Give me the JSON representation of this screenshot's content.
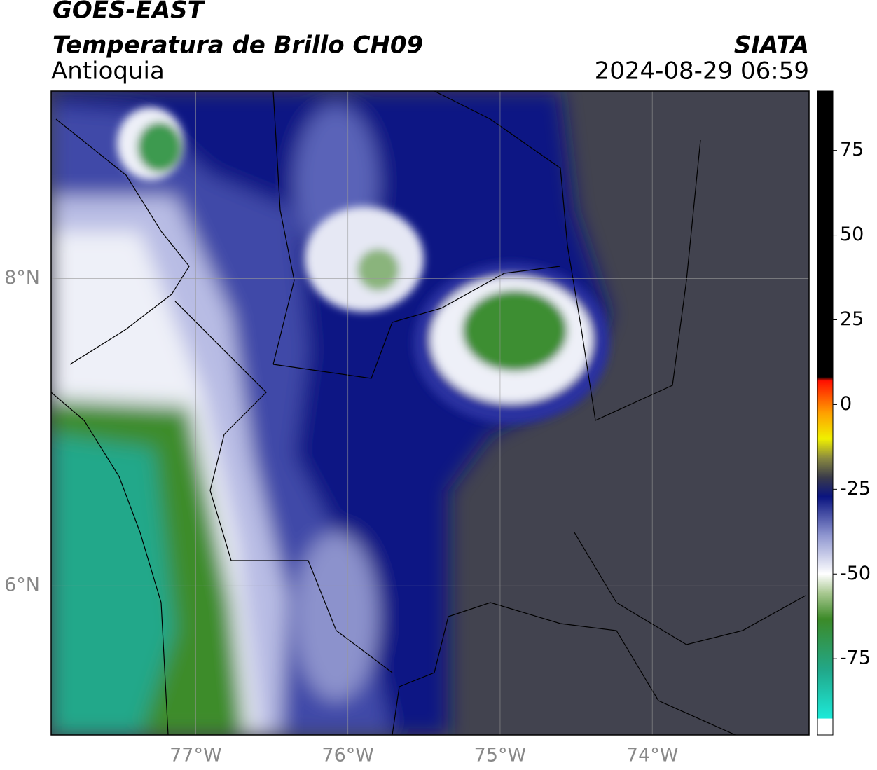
{
  "title": "GOES-EAST",
  "subtitle": "Temperatura de Brillo CH09",
  "region": "Antioquia",
  "source": "SIATA",
  "datetime": "2024-08-29 06:59",
  "map": {
    "xlim": [
      -77.95,
      -72.97
    ],
    "ylim": [
      5.03,
      9.22
    ],
    "xticks": [
      {
        "value": -77,
        "label": "77°W"
      },
      {
        "value": -76,
        "label": "76°W"
      },
      {
        "value": -75,
        "label": "75°W"
      },
      {
        "value": -74,
        "label": "74°W"
      }
    ],
    "yticks": [
      {
        "value": 8,
        "label": "8°N"
      },
      {
        "value": 6,
        "label": "6°N"
      }
    ]
  },
  "colorbar": {
    "lim": [
      -97.5,
      92.5
    ],
    "ticks": [
      75,
      50,
      25,
      0,
      -25,
      -50,
      -75
    ]
  }
}
